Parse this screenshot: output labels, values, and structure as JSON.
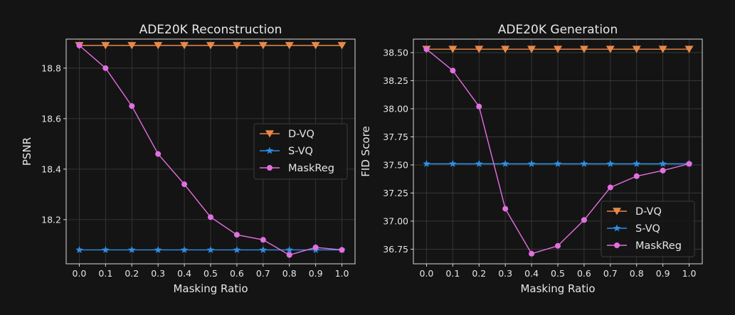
{
  "chart_data": [
    {
      "type": "line",
      "title": "ADE20K Reconstruction",
      "xlabel": "Masking Ratio",
      "ylabel": "PSNR",
      "x": [
        0.0,
        0.1,
        0.2,
        0.3,
        0.4,
        0.5,
        0.6,
        0.7,
        0.8,
        0.9,
        1.0
      ],
      "x_ticks": [
        "0.0",
        "0.1",
        "0.2",
        "0.3",
        "0.4",
        "0.5",
        "0.6",
        "0.7",
        "0.8",
        "0.9",
        "1.0"
      ],
      "y_ticks": [
        "18.2",
        "18.4",
        "18.6",
        "18.8"
      ],
      "xlim": [
        -0.05,
        1.05
      ],
      "ylim": [
        18.025,
        18.915
      ],
      "grid": true,
      "legend_position": "center-right",
      "series": [
        {
          "name": "D-VQ",
          "color": "#e8894a",
          "marker": "triangle-down",
          "values": [
            18.89,
            18.89,
            18.89,
            18.89,
            18.89,
            18.89,
            18.89,
            18.89,
            18.89,
            18.89,
            18.89
          ]
        },
        {
          "name": "S-VQ",
          "color": "#2f8fe8",
          "marker": "star",
          "values": [
            18.08,
            18.08,
            18.08,
            18.08,
            18.08,
            18.08,
            18.08,
            18.08,
            18.08,
            18.08,
            18.08
          ]
        },
        {
          "name": "MaskReg",
          "color": "#e26fe0",
          "marker": "circle",
          "values": [
            18.89,
            18.8,
            18.65,
            18.46,
            18.34,
            18.21,
            18.14,
            18.12,
            18.06,
            18.09,
            18.08
          ]
        }
      ]
    },
    {
      "type": "line",
      "title": "ADE20K Generation",
      "xlabel": "Masking Ratio",
      "ylabel": "FID Score",
      "x": [
        0.0,
        0.1,
        0.2,
        0.3,
        0.4,
        0.5,
        0.6,
        0.7,
        0.8,
        0.9,
        1.0
      ],
      "x_ticks": [
        "0.0",
        "0.1",
        "0.2",
        "0.3",
        "0.4",
        "0.5",
        "0.6",
        "0.7",
        "0.8",
        "0.9",
        "1.0"
      ],
      "y_ticks": [
        "36.75",
        "37.00",
        "37.25",
        "37.50",
        "37.75",
        "38.00",
        "38.25",
        "38.50"
      ],
      "xlim": [
        -0.05,
        1.05
      ],
      "ylim": [
        36.62,
        38.62
      ],
      "grid": true,
      "legend_position": "lower-right",
      "series": [
        {
          "name": "D-VQ",
          "color": "#e8894a",
          "marker": "triangle-down",
          "values": [
            38.53,
            38.53,
            38.53,
            38.53,
            38.53,
            38.53,
            38.53,
            38.53,
            38.53,
            38.53,
            38.53
          ]
        },
        {
          "name": "S-VQ",
          "color": "#2f8fe8",
          "marker": "star",
          "values": [
            37.51,
            37.51,
            37.51,
            37.51,
            37.51,
            37.51,
            37.51,
            37.51,
            37.51,
            37.51,
            37.51
          ]
        },
        {
          "name": "MaskReg",
          "color": "#e26fe0",
          "marker": "circle",
          "values": [
            38.53,
            38.34,
            38.02,
            37.11,
            36.71,
            36.78,
            37.01,
            37.3,
            37.4,
            37.45,
            37.51
          ]
        }
      ]
    }
  ]
}
